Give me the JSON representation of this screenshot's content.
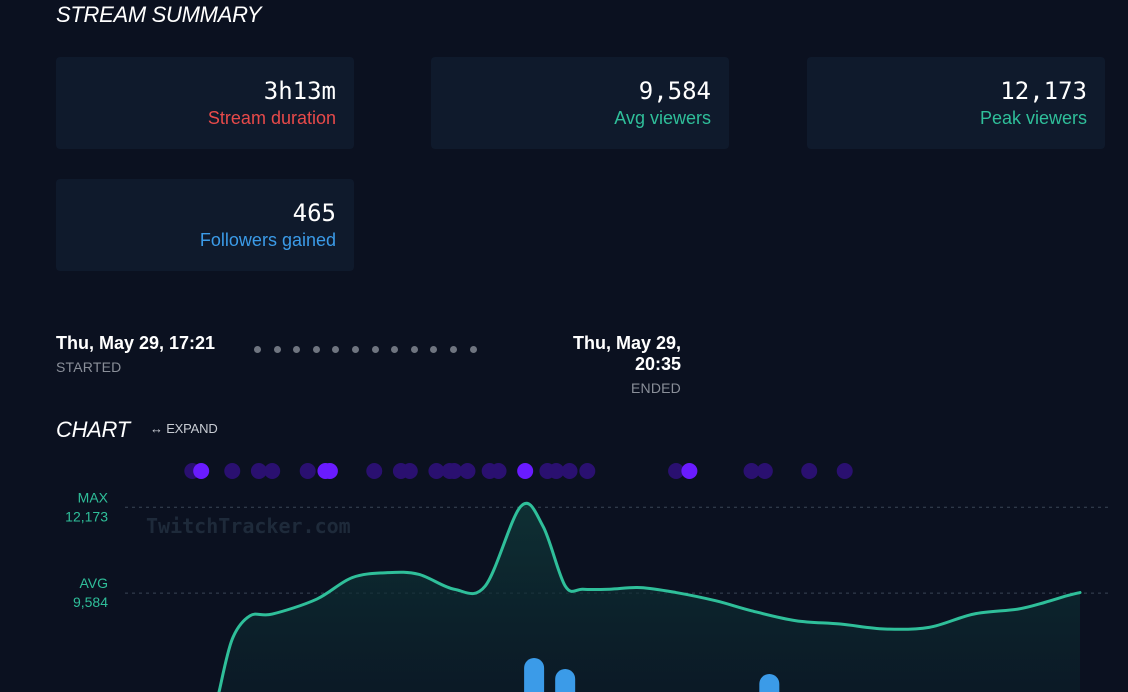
{
  "summary": {
    "title": "STREAM SUMMARY",
    "cards": [
      {
        "value": "3h13m",
        "label": "Stream duration",
        "color": "#e84a4a"
      },
      {
        "value": "9,584",
        "label": "Avg viewers",
        "color": "#2fbf9a"
      },
      {
        "value": "12,173",
        "label": "Peak viewers",
        "color": "#2fbf9a"
      },
      {
        "value": "465",
        "label": "Followers gained",
        "color": "#3b9be8"
      }
    ]
  },
  "timeline": {
    "start": {
      "time": "Thu, May 29, 17:21",
      "label": "STARTED"
    },
    "end": {
      "time": "Thu, May 29, 20:35",
      "label": "ENDED"
    }
  },
  "chart_section": {
    "title": "CHART",
    "expand_label": "↔ EXPAND",
    "watermark": "TwitchTracker.com"
  },
  "chart_data": {
    "type": "area",
    "x_range": [
      0,
      194
    ],
    "y_range": [
      6600,
      13900
    ],
    "reference_lines": [
      {
        "name": "MAX",
        "value": 12173,
        "label": "12,173"
      },
      {
        "name": "AVG",
        "value": 9584,
        "label": "9,584"
      }
    ],
    "series": [
      {
        "color": "#2fbf9a",
        "x": [
          0,
          3,
          7,
          12,
          22,
          30,
          38,
          45,
          53,
          60,
          68,
          73,
          78,
          82,
          88,
          95,
          103,
          112,
          120,
          130,
          140,
          150,
          160,
          170,
          180,
          186,
          191,
          194
        ],
        "values": [
          6600,
          8200,
          8900,
          8950,
          9400,
          10050,
          10200,
          10150,
          9700,
          9800,
          12200,
          11600,
          9800,
          9700,
          9700,
          9750,
          9600,
          9350,
          9050,
          8750,
          8650,
          8500,
          8550,
          8950,
          9100,
          9300,
          9500,
          9600
        ]
      }
    ],
    "events": {
      "purple_markers_x": [
        3,
        5,
        12,
        18,
        21,
        29,
        33,
        34,
        44,
        50,
        52,
        58,
        61,
        62,
        65,
        70,
        72,
        78,
        83,
        85,
        88,
        92,
        112,
        115,
        129,
        132,
        142,
        150
      ],
      "bright_markers_x": [
        5,
        33,
        34,
        78,
        115
      ],
      "colors": {
        "dim": "#2a1070",
        "bright": "#6a1bff"
      },
      "bars": [
        {
          "x": 71,
          "height": 24
        },
        {
          "x": 78,
          "height": 13
        },
        {
          "x": 124,
          "height": 8
        }
      ],
      "bar_color": "#3b9be8"
    }
  }
}
